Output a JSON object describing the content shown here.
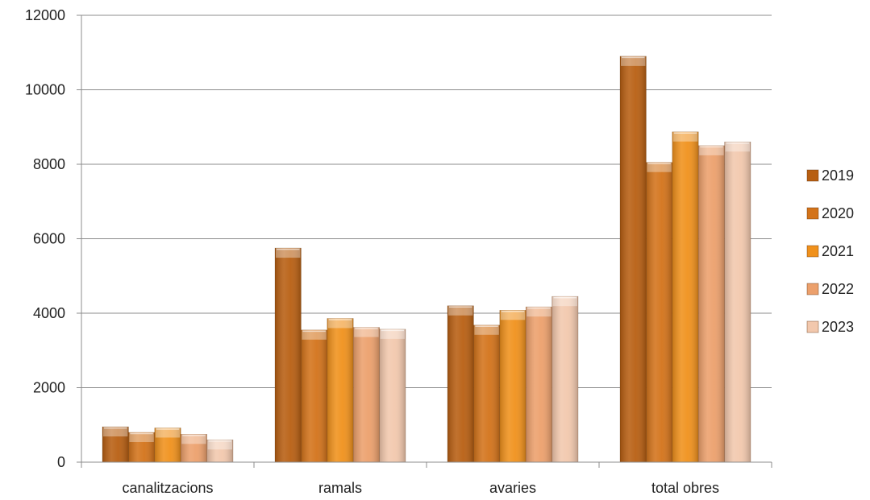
{
  "chart_data": {
    "type": "bar",
    "title": "",
    "xlabel": "",
    "ylabel": "",
    "categories": [
      "canalitzacions",
      "ramals",
      "avaries",
      "total obres"
    ],
    "ylim": [
      0,
      12000
    ],
    "yticks": [
      0,
      2000,
      4000,
      6000,
      8000,
      10000,
      12000
    ],
    "grid": true,
    "legend_position": "right",
    "series": [
      {
        "name": "2019",
        "color": "#b85f12",
        "values": [
          950,
          5750,
          4200,
          10900
        ]
      },
      {
        "name": "2020",
        "color": "#d3731a",
        "values": [
          800,
          3550,
          3680,
          8050
        ]
      },
      {
        "name": "2021",
        "color": "#f0911c",
        "values": [
          920,
          3860,
          4080,
          8870
        ]
      },
      {
        "name": "2022",
        "color": "#eca06c",
        "values": [
          750,
          3620,
          4170,
          8500
        ]
      },
      {
        "name": "2023",
        "color": "#f2c8ad",
        "values": [
          600,
          3570,
          4450,
          8600
        ]
      }
    ]
  }
}
